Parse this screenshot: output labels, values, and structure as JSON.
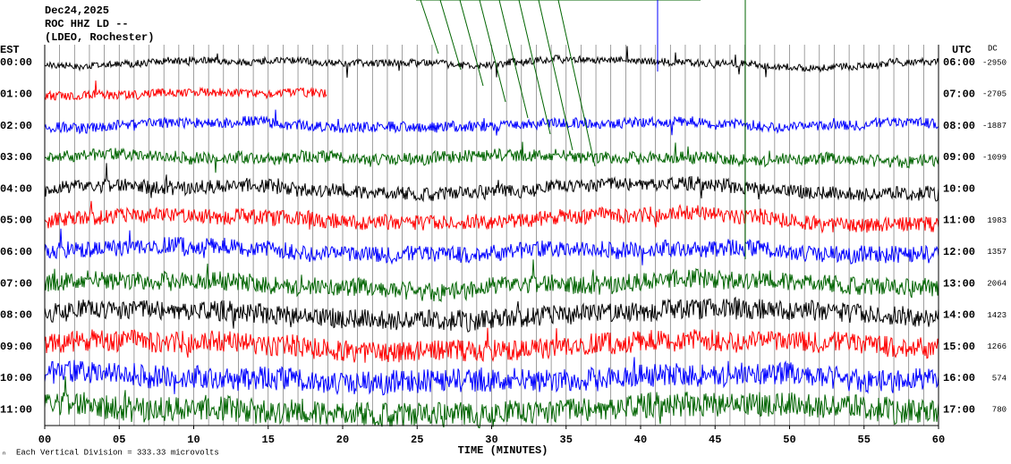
{
  "header": {
    "date": "Dec24,2025",
    "station": "ROC HHZ LD --",
    "location": "(LDEO, Rochester)"
  },
  "left_axis_title": "EST",
  "right_axis_title": "UTC",
  "dc_title": "DC",
  "rows": [
    {
      "est": "00:00",
      "utc": "06:00",
      "dc": "-2950"
    },
    {
      "est": "01:00",
      "utc": "07:00",
      "dc": "-2705"
    },
    {
      "est": "02:00",
      "utc": "08:00",
      "dc": "-1887"
    },
    {
      "est": "03:00",
      "utc": "09:00",
      "dc": "-1099"
    },
    {
      "est": "04:00",
      "utc": "10:00"
    },
    {
      "est": "05:00",
      "utc": "11:00",
      "dc": "1983"
    },
    {
      "est": "06:00",
      "utc": "12:00",
      "dc": "1357"
    },
    {
      "est": "07:00",
      "utc": "13:00",
      "dc": "2064"
    },
    {
      "est": "08:00",
      "utc": "14:00",
      "dc": "1423"
    },
    {
      "est": "09:00",
      "utc": "15:00",
      "dc": "1266"
    },
    {
      "est": "10:00",
      "utc": "16:00",
      "dc": "574"
    },
    {
      "est": "11:00",
      "utc": "17:00",
      "dc": "780"
    }
  ],
  "x_ticks": [
    "00",
    "05",
    "10",
    "15",
    "20",
    "25",
    "30",
    "35",
    "40",
    "45",
    "50",
    "55",
    "60"
  ],
  "x_axis_title": "TIME (MINUTES)",
  "footer": "Each Vertical Division =  333.33 microvolts"
}
